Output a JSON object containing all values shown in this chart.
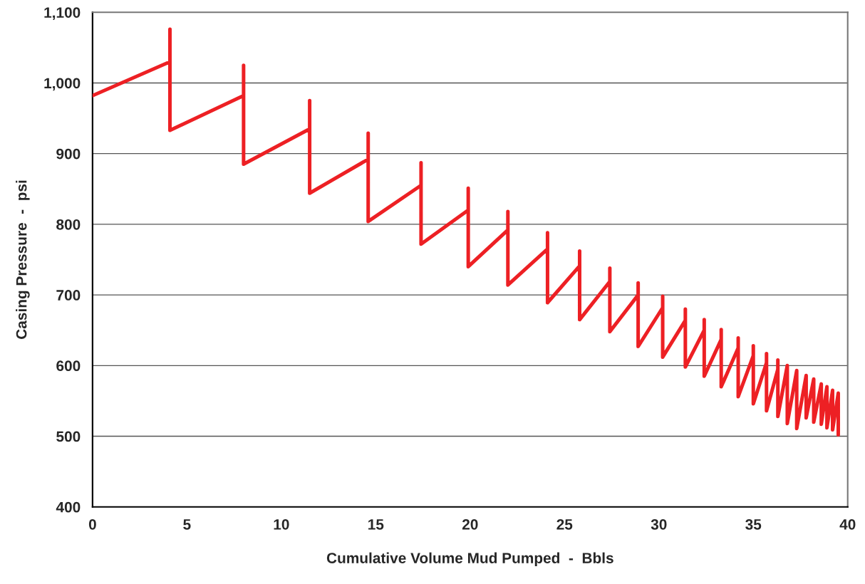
{
  "chart_data": {
    "type": "line",
    "xlabel": "Cumulative Volume Mud Pumped  -  Bbls",
    "ylabel": "Casing Pressure  -  psi",
    "xlim": [
      0,
      40
    ],
    "xticks": [
      0,
      5,
      10,
      15,
      20,
      25,
      30,
      35,
      40
    ],
    "ylim": [
      400,
      1100
    ],
    "yticks": [
      400,
      500,
      600,
      700,
      800,
      900,
      {
        "value": 1000,
        "label": "1,000"
      },
      {
        "value": 1100,
        "label": "1,100"
      }
    ],
    "grid": "y",
    "legend": false,
    "marker": "none",
    "line_style": "solid",
    "series": [
      {
        "color": "#ed2024",
        "x": [
          0,
          4.1,
          4.1,
          4.1,
          8.0,
          8.0,
          8.0,
          11.5,
          11.5,
          11.5,
          14.6,
          14.6,
          14.6,
          17.4,
          17.4,
          17.4,
          19.9,
          19.9,
          19.9,
          22.0,
          22.0,
          22.0,
          24.1,
          24.1,
          24.1,
          25.8,
          25.8,
          25.8,
          27.4,
          27.4,
          27.4,
          28.9,
          28.9,
          28.9,
          30.2,
          30.2,
          30.2,
          31.4,
          31.4,
          31.4,
          32.4,
          32.4,
          32.4,
          33.3,
          33.3,
          33.3,
          34.2,
          34.2,
          34.2,
          35.0,
          35.0,
          35.0,
          35.7,
          35.7,
          35.7,
          36.3,
          36.3,
          36.3,
          36.8,
          36.8,
          37.3,
          37.3,
          37.8,
          37.8,
          38.2,
          38.2,
          38.6,
          38.6,
          38.9,
          38.9,
          39.2,
          39.2,
          39.5,
          39.5
        ],
        "values": [
          982,
          1030,
          1076,
          933,
          982,
          1025,
          885,
          935,
          975,
          844,
          892,
          929,
          804,
          855,
          887,
          772,
          820,
          851,
          740,
          792,
          818,
          714,
          765,
          788,
          689,
          741,
          762,
          665,
          719,
          738,
          648,
          700,
          717,
          627,
          682,
          698,
          612,
          664,
          680,
          598,
          650,
          665,
          585,
          637,
          651,
          570,
          625,
          639,
          556,
          614,
          628,
          546,
          604,
          617,
          536,
          595,
          608,
          528,
          600,
          518,
          593,
          511,
          586,
          526,
          581,
          520,
          574,
          517,
          570,
          512,
          565,
          509,
          561,
          502
        ]
      }
    ]
  }
}
